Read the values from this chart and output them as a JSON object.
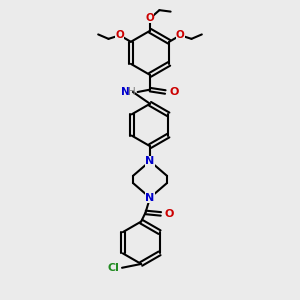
{
  "bg_color": "#ebebeb",
  "bond_color": "#000000",
  "N_color": "#0000cc",
  "O_color": "#cc0000",
  "Cl_color": "#228B22",
  "H_color": "#808080",
  "linewidth": 1.5,
  "figsize": [
    3.0,
    3.0
  ],
  "dpi": 100,
  "xlim": [
    0,
    10
  ],
  "ylim": [
    0,
    10
  ]
}
